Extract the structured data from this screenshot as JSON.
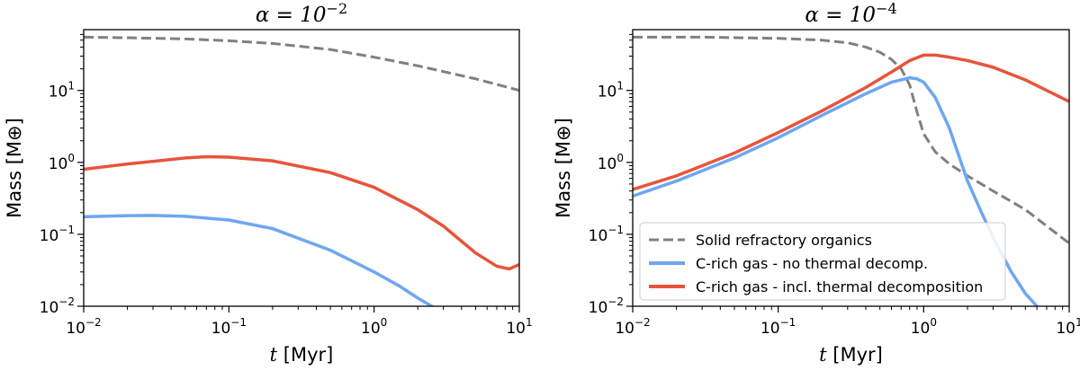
{
  "chart_data": [
    {
      "type": "line",
      "title_prefix": "α = 10",
      "title_exp": "−2",
      "xlabel_var": "t",
      "xlabel_unit": "[Myr]",
      "ylabel": "Mass [M⊕]",
      "xscale": "log",
      "yscale": "log",
      "xlim": [
        0.01,
        10
      ],
      "ylim": [
        0.01,
        70
      ],
      "x_ticks": [
        {
          "value": 0.01,
          "base": "10",
          "exp": "−2"
        },
        {
          "value": 0.1,
          "base": "10",
          "exp": "−1"
        },
        {
          "value": 1,
          "base": "10",
          "exp": "0"
        },
        {
          "value": 10,
          "base": "10",
          "exp": "1"
        }
      ],
      "y_ticks": [
        {
          "value": 0.01,
          "base": "10",
          "exp": "−2"
        },
        {
          "value": 0.1,
          "base": "10",
          "exp": "−1"
        },
        {
          "value": 1,
          "base": "10",
          "exp": "0"
        },
        {
          "value": 10,
          "base": "10",
          "exp": "1"
        }
      ],
      "series": [
        {
          "name": "Solid refractory organics",
          "color": "#808080",
          "dash": true,
          "x": [
            0.01,
            0.02,
            0.05,
            0.1,
            0.2,
            0.5,
            1,
            2,
            5,
            10
          ],
          "y": [
            55,
            54,
            52,
            49,
            45,
            37,
            29,
            22,
            14.5,
            10
          ]
        },
        {
          "name": "C-rich gas - incl. thermal decomposition",
          "color": "#e8543a",
          "dash": false,
          "x": [
            0.01,
            0.02,
            0.05,
            0.07,
            0.1,
            0.2,
            0.5,
            1,
            2,
            3,
            5,
            7,
            8.5,
            10
          ],
          "y": [
            0.8,
            0.95,
            1.15,
            1.2,
            1.18,
            1.05,
            0.72,
            0.45,
            0.22,
            0.13,
            0.055,
            0.036,
            0.033,
            0.038
          ]
        },
        {
          "name": "C-rich gas - no thermal decomp.",
          "color": "#6ea6f2",
          "dash": false,
          "x": [
            0.01,
            0.02,
            0.03,
            0.05,
            0.1,
            0.2,
            0.5,
            1,
            1.5,
            2,
            2.6
          ],
          "y": [
            0.175,
            0.182,
            0.183,
            0.178,
            0.158,
            0.12,
            0.06,
            0.03,
            0.019,
            0.013,
            0.0095
          ]
        }
      ]
    },
    {
      "type": "line",
      "title_prefix": "α = 10",
      "title_exp": "−4",
      "xlabel_var": "t",
      "xlabel_unit": "[Myr]",
      "ylabel": "Mass [M⊕]",
      "xscale": "log",
      "yscale": "log",
      "xlim": [
        0.01,
        10
      ],
      "ylim": [
        0.01,
        70
      ],
      "x_ticks": [
        {
          "value": 0.01,
          "base": "10",
          "exp": "−2"
        },
        {
          "value": 0.1,
          "base": "10",
          "exp": "−1"
        },
        {
          "value": 1,
          "base": "10",
          "exp": "0"
        },
        {
          "value": 10,
          "base": "10",
          "exp": "1"
        }
      ],
      "y_ticks": [
        {
          "value": 0.01,
          "base": "10",
          "exp": "−2"
        },
        {
          "value": 0.1,
          "base": "10",
          "exp": "−1"
        },
        {
          "value": 1,
          "base": "10",
          "exp": "0"
        },
        {
          "value": 10,
          "base": "10",
          "exp": "1"
        }
      ],
      "legend": {
        "placement": "lower-left",
        "entries": [
          {
            "label": "Solid refractory organics",
            "color": "#808080",
            "dash": true
          },
          {
            "label": "C-rich gas - no thermal decomp.",
            "color": "#6ea6f2",
            "dash": false
          },
          {
            "label": "C-rich gas - incl. thermal decomposition",
            "color": "#e8543a",
            "dash": false
          }
        ]
      },
      "series": [
        {
          "name": "Solid refractory organics",
          "color": "#808080",
          "dash": true,
          "x": [
            0.01,
            0.03,
            0.1,
            0.2,
            0.3,
            0.4,
            0.5,
            0.6,
            0.7,
            0.8,
            0.9,
            1,
            1.2,
            1.5,
            2,
            3,
            5,
            10
          ],
          "y": [
            55,
            55,
            53,
            50,
            46,
            40,
            34,
            27,
            20,
            12,
            5,
            2.5,
            1.4,
            0.95,
            0.65,
            0.4,
            0.22,
            0.075
          ]
        },
        {
          "name": "C-rich gas - no thermal decomp.",
          "color": "#6ea6f2",
          "dash": false,
          "x": [
            0.01,
            0.02,
            0.05,
            0.1,
            0.2,
            0.4,
            0.6,
            0.8,
            0.9,
            1,
            1.2,
            1.5,
            2,
            2.5,
            3,
            4,
            5,
            6
          ],
          "y": [
            0.34,
            0.55,
            1.15,
            2.2,
            4.5,
            9,
            13,
            15,
            14.5,
            13,
            8,
            3,
            0.55,
            0.2,
            0.09,
            0.03,
            0.015,
            0.01
          ]
        },
        {
          "name": "C-rich gas - incl. thermal decomposition",
          "color": "#e8543a",
          "dash": false,
          "x": [
            0.01,
            0.02,
            0.05,
            0.1,
            0.2,
            0.4,
            0.6,
            0.8,
            1,
            1.2,
            1.5,
            2,
            3,
            5,
            7,
            10
          ],
          "y": [
            0.42,
            0.65,
            1.35,
            2.6,
            5.2,
            11,
            18,
            26,
            31,
            31,
            29,
            26,
            21,
            14,
            10,
            7
          ]
        }
      ]
    }
  ]
}
